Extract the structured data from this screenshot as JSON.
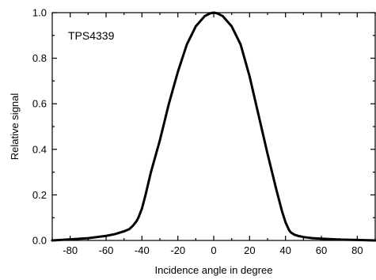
{
  "chart_data": {
    "type": "line",
    "title": "",
    "annotation": "TPS4339",
    "xlabel": "Incidence angle in degree",
    "ylabel": "Relative signal",
    "xlim": [
      -90,
      90
    ],
    "ylim": [
      0.0,
      1.0
    ],
    "xticks": [
      -80,
      -60,
      -40,
      -20,
      0,
      20,
      40,
      60,
      80
    ],
    "yticks": [
      0.0,
      0.2,
      0.4,
      0.6,
      0.8,
      1.0
    ],
    "ytick_labels": [
      "0.0",
      "0.2",
      "0.4",
      "0.6",
      "0.8",
      "1.0"
    ],
    "grid": false,
    "legend": "none",
    "line_color": "#000000",
    "series": [
      {
        "x": [
          -90,
          -80,
          -70,
          -60,
          -55,
          -50,
          -47,
          -45,
          -43,
          -42,
          -40,
          -38,
          -35,
          -30,
          -25,
          -20,
          -15,
          -10,
          -5,
          -2,
          0,
          2,
          5,
          10,
          15,
          20,
          25,
          30,
          35,
          38,
          40,
          42,
          43,
          45,
          47,
          50,
          55,
          60,
          70,
          80,
          90
        ],
        "y": [
          0.0,
          0.005,
          0.01,
          0.02,
          0.028,
          0.04,
          0.05,
          0.065,
          0.085,
          0.1,
          0.14,
          0.2,
          0.3,
          0.44,
          0.6,
          0.74,
          0.86,
          0.94,
          0.985,
          0.997,
          1.0,
          0.997,
          0.985,
          0.94,
          0.86,
          0.72,
          0.55,
          0.38,
          0.22,
          0.13,
          0.08,
          0.045,
          0.035,
          0.025,
          0.02,
          0.015,
          0.01,
          0.008,
          0.004,
          0.002,
          0.0
        ]
      }
    ]
  }
}
